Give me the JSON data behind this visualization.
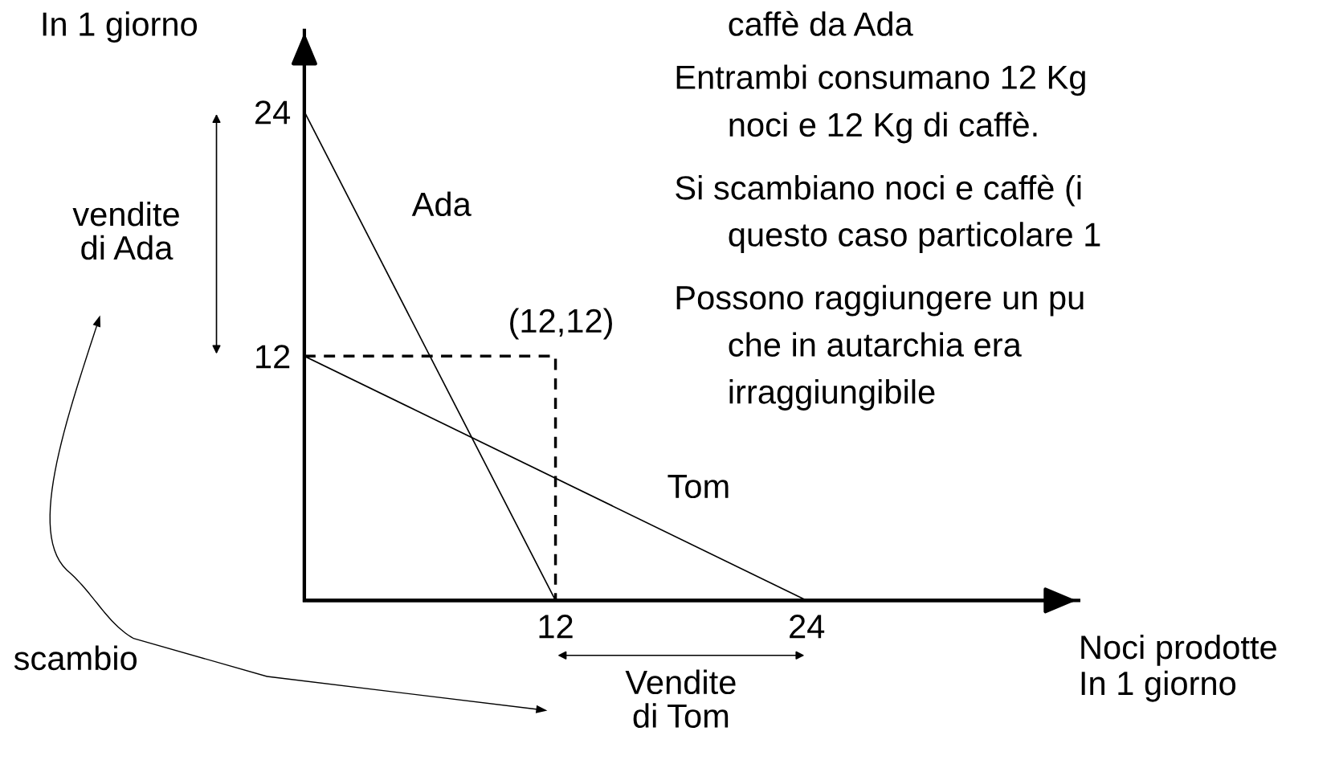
{
  "chart_data": {
    "type": "line",
    "ylabel": "In 1 giorno",
    "xlabel": "Noci prodotte\nIn 1 giorno",
    "series": [
      {
        "name": "Ada",
        "color": "#000000",
        "x": [
          0,
          12
        ],
        "values": [
          24,
          0
        ]
      },
      {
        "name": "Tom",
        "color": "#000000",
        "x": [
          0,
          24
        ],
        "values": [
          12,
          0
        ]
      },
      {
        "color": "#000000",
        "x": [
          0,
          12,
          12
        ],
        "values": [
          12,
          12,
          0
        ],
        "line_style": "dashed"
      }
    ],
    "xlim": [
      0,
      37
    ],
    "ylim": [
      0,
      28
    ],
    "xticks": [
      12,
      24
    ],
    "yticks": [
      12,
      24
    ],
    "grid": false,
    "legend": false,
    "marker": "none",
    "annotations": [
      {
        "text": "(12,12)",
        "x": 12,
        "y": 12
      },
      "vendite\ndi Ada",
      "Vendite\ndi Tom",
      "scambio",
      "caffè da Ada",
      "Entrambi consumano 12 Kg\nnoci e 12 Kg di caffè.",
      "Si scambiano noci e caffè (i\nquesto caso particolare 1",
      "Possono raggiungere un pu\nche in autarchia era\nirraggiungibile"
    ]
  }
}
